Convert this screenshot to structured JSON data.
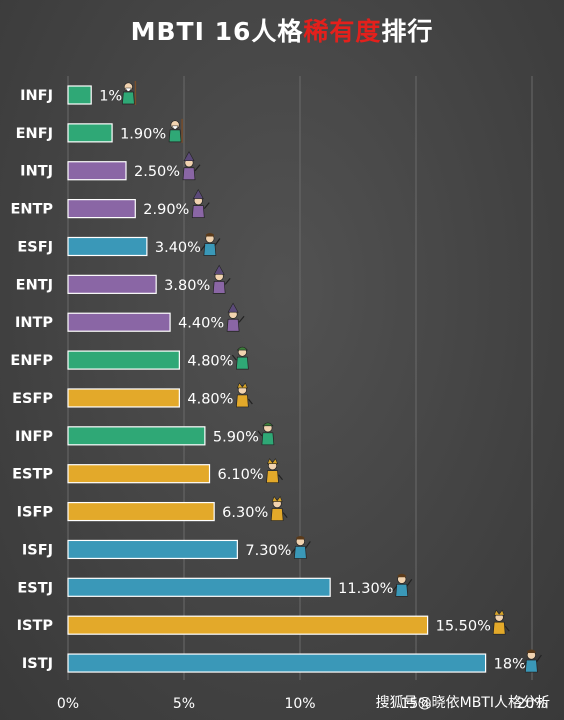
{
  "title": {
    "before": "MBTI 16人格",
    "highlight": "稀有度",
    "after": "排行",
    "highlight_color": "#e3201c"
  },
  "watermark": "搜狐号@晓依MBTI人格分析",
  "colors": {
    "background": "#454545",
    "NF": "#2fa876",
    "NT": "#8a66a5",
    "SJ": "#3a98b8",
    "SP": "#e3a92a",
    "text": "#ffffff",
    "grid": "#6a6a6a"
  },
  "chart_data": {
    "type": "bar",
    "orientation": "horizontal",
    "title": "MBTI 16人格稀有度排行",
    "categories": [
      "INFJ",
      "ENFJ",
      "INTJ",
      "ENTP",
      "ESFJ",
      "ENTJ",
      "INTP",
      "ENFP",
      "ESFP",
      "INFP",
      "ESTP",
      "ISFP",
      "ISFJ",
      "ESTJ",
      "ISTP",
      "ISTJ"
    ],
    "values": [
      1,
      1.9,
      2.5,
      2.9,
      3.4,
      3.8,
      4.4,
      4.8,
      4.8,
      5.9,
      6.1,
      6.3,
      7.3,
      11.3,
      15.5,
      18
    ],
    "data_labels": [
      "1%",
      "1.90%",
      "2.50%",
      "2.90%",
      "3.40%",
      "3.80%",
      "4.40%",
      "4.80%",
      "4.80%",
      "5.90%",
      "6.10%",
      "6.30%",
      "7.30%",
      "11.30%",
      "15.50%",
      "18%"
    ],
    "groups": [
      "NF",
      "NF",
      "NT",
      "NT",
      "SJ",
      "NT",
      "NT",
      "NF",
      "SP",
      "NF",
      "SP",
      "SP",
      "SJ",
      "SJ",
      "SP",
      "SJ"
    ],
    "x_ticks": [
      0,
      5,
      10,
      15,
      20
    ],
    "x_tick_labels": [
      "0%",
      "5%",
      "10%",
      "15%",
      "20%"
    ],
    "xlim": [
      0,
      20
    ],
    "grid": true,
    "legend": "none",
    "icons": [
      "sage-figure-icon",
      "sage-figure-icon",
      "wizard-figure-icon",
      "wizard-figure-icon",
      "cheer-figure-icon",
      "wizard-figure-icon",
      "wizard-figure-icon",
      "adventurer-figure-icon",
      "performer-figure-icon",
      "adventurer-figure-icon",
      "performer-figure-icon",
      "performer-figure-icon",
      "cheer-figure-icon",
      "cheer-figure-icon",
      "performer-figure-icon",
      "cheer-figure-icon"
    ]
  }
}
